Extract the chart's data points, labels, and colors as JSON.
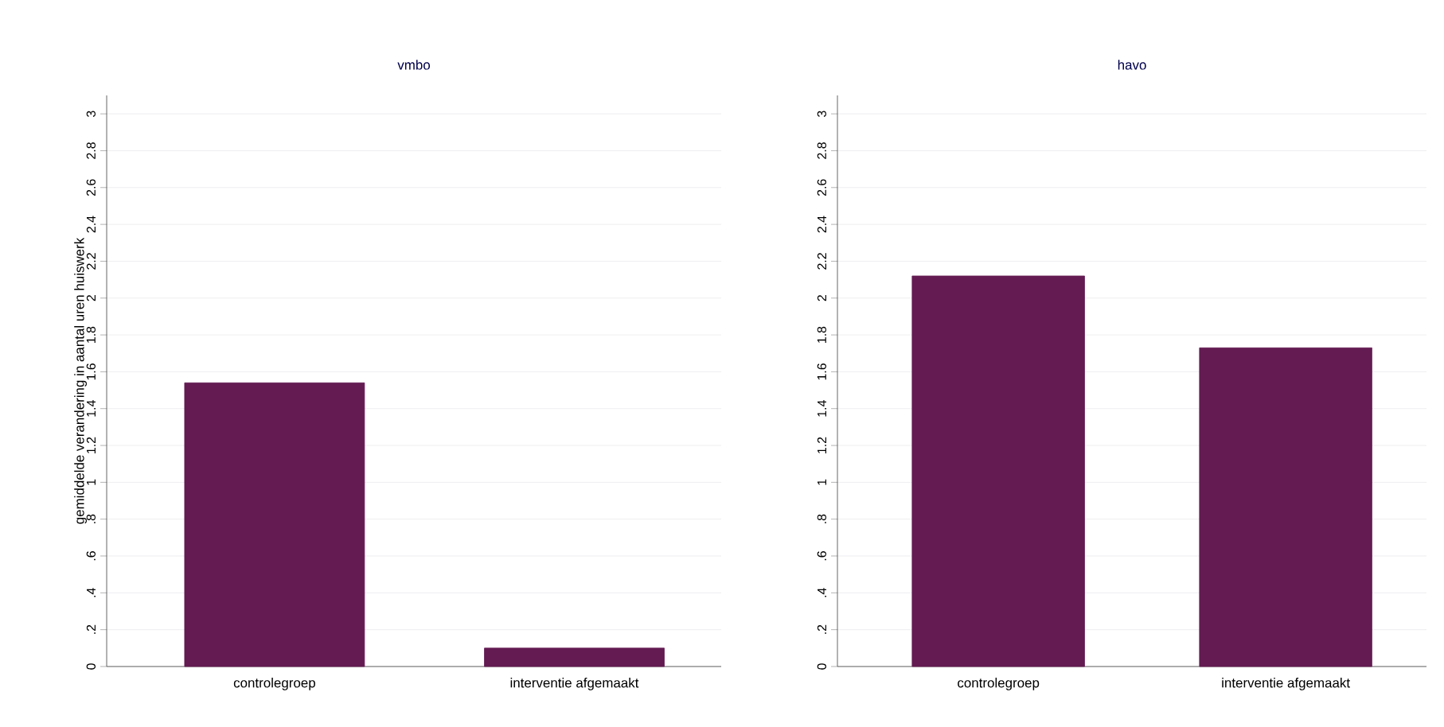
{
  "chart_data": [
    {
      "type": "bar",
      "title": "vmbo",
      "ylabel": "gemiddelde verandering in aantal uren huiswerk",
      "categories": [
        "controlegroep",
        "interventie afgemaakt"
      ],
      "values": [
        1.54,
        0.1
      ],
      "color": "#631b52",
      "ylim": [
        0,
        3.1
      ],
      "yticks": [
        0,
        {
          "value": 0.2,
          "label": ".2"
        },
        {
          "value": 0.4,
          "label": ".4"
        },
        {
          "value": 0.6,
          "label": ".6"
        },
        {
          "value": 0.8,
          "label": ".8"
        },
        1,
        1.2,
        1.4,
        1.6,
        1.8,
        2,
        2.2,
        2.4,
        2.6,
        2.8,
        3
      ],
      "grid": "y"
    },
    {
      "type": "bar",
      "title": "havo",
      "categories": [
        "controlegroep",
        "interventie afgemaakt"
      ],
      "values": [
        2.12,
        1.73
      ],
      "color": "#631b52",
      "ylim": [
        0,
        3.1
      ],
      "yticks": [
        0,
        {
          "value": 0.2,
          "label": ".2"
        },
        {
          "value": 0.4,
          "label": ".4"
        },
        {
          "value": 0.6,
          "label": ".6"
        },
        {
          "value": 0.8,
          "label": ".8"
        },
        1,
        1.2,
        1.4,
        1.6,
        1.8,
        2,
        2.2,
        2.4,
        2.6,
        2.8,
        3
      ],
      "grid": "y"
    }
  ]
}
